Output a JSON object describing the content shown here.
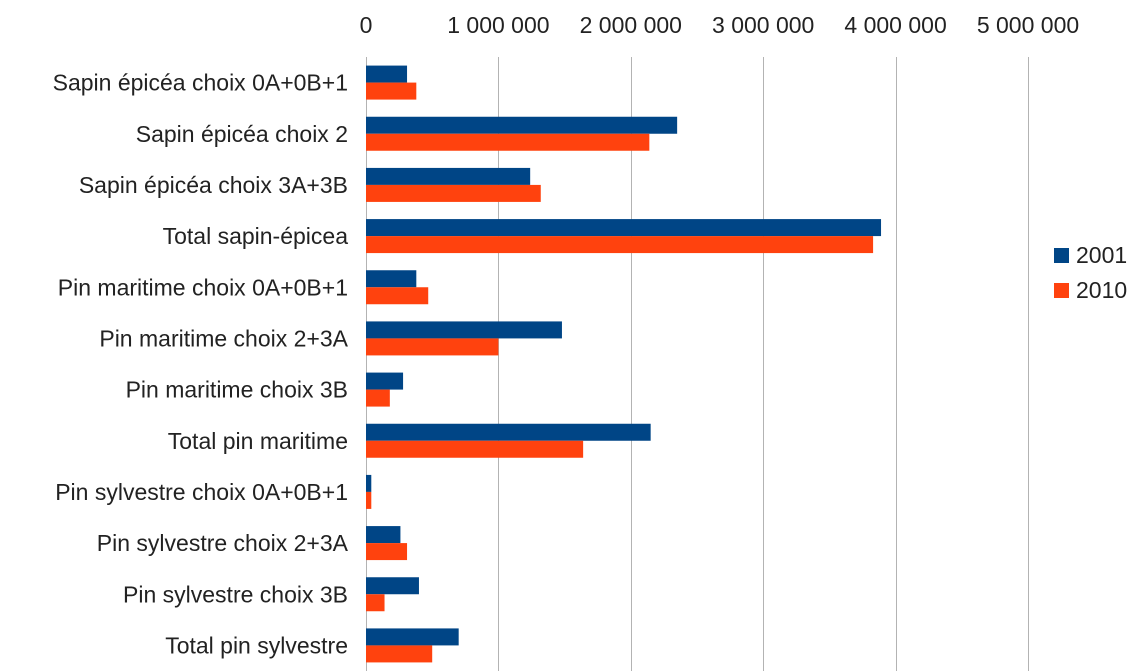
{
  "chart_data": {
    "type": "bar",
    "orientation": "horizontal",
    "title": "",
    "xlabel": "",
    "ylabel": "",
    "xlim": [
      0,
      5000000
    ],
    "x_ticks": [
      0,
      1000000,
      2000000,
      3000000,
      4000000,
      5000000
    ],
    "tick_labels": [
      "0",
      "1 000 000",
      "2 000 000",
      "3 000 000",
      "4 000 000",
      "5 000 000"
    ],
    "x_axis_position": "top",
    "grid": true,
    "legend_position": "right",
    "categories": [
      "Sapin épicéa choix 0A+0B+1",
      "Sapin épicéa choix 2",
      "Sapin épicéa choix 3A+3B",
      "Total sapin-épicea",
      "Pin maritime choix 0A+0B+1",
      "Pin maritime choix 2+3A",
      "Pin maritime choix 3B",
      "Total pin maritime",
      "Pin sylvestre choix 0A+0B+1",
      "Pin sylvestre choix 2+3A",
      "Pin sylvestre choix 3B",
      "Total pin sylvestre"
    ],
    "series": [
      {
        "name": "2001",
        "color": "#004586",
        "values": [
          310000,
          2350000,
          1240000,
          3890000,
          380000,
          1480000,
          280000,
          2150000,
          40000,
          260000,
          400000,
          700000
        ]
      },
      {
        "name": "2010",
        "color": "#ff420e",
        "values": [
          380000,
          2140000,
          1320000,
          3830000,
          470000,
          1000000,
          180000,
          1640000,
          40000,
          310000,
          140000,
          500000
        ]
      }
    ]
  }
}
